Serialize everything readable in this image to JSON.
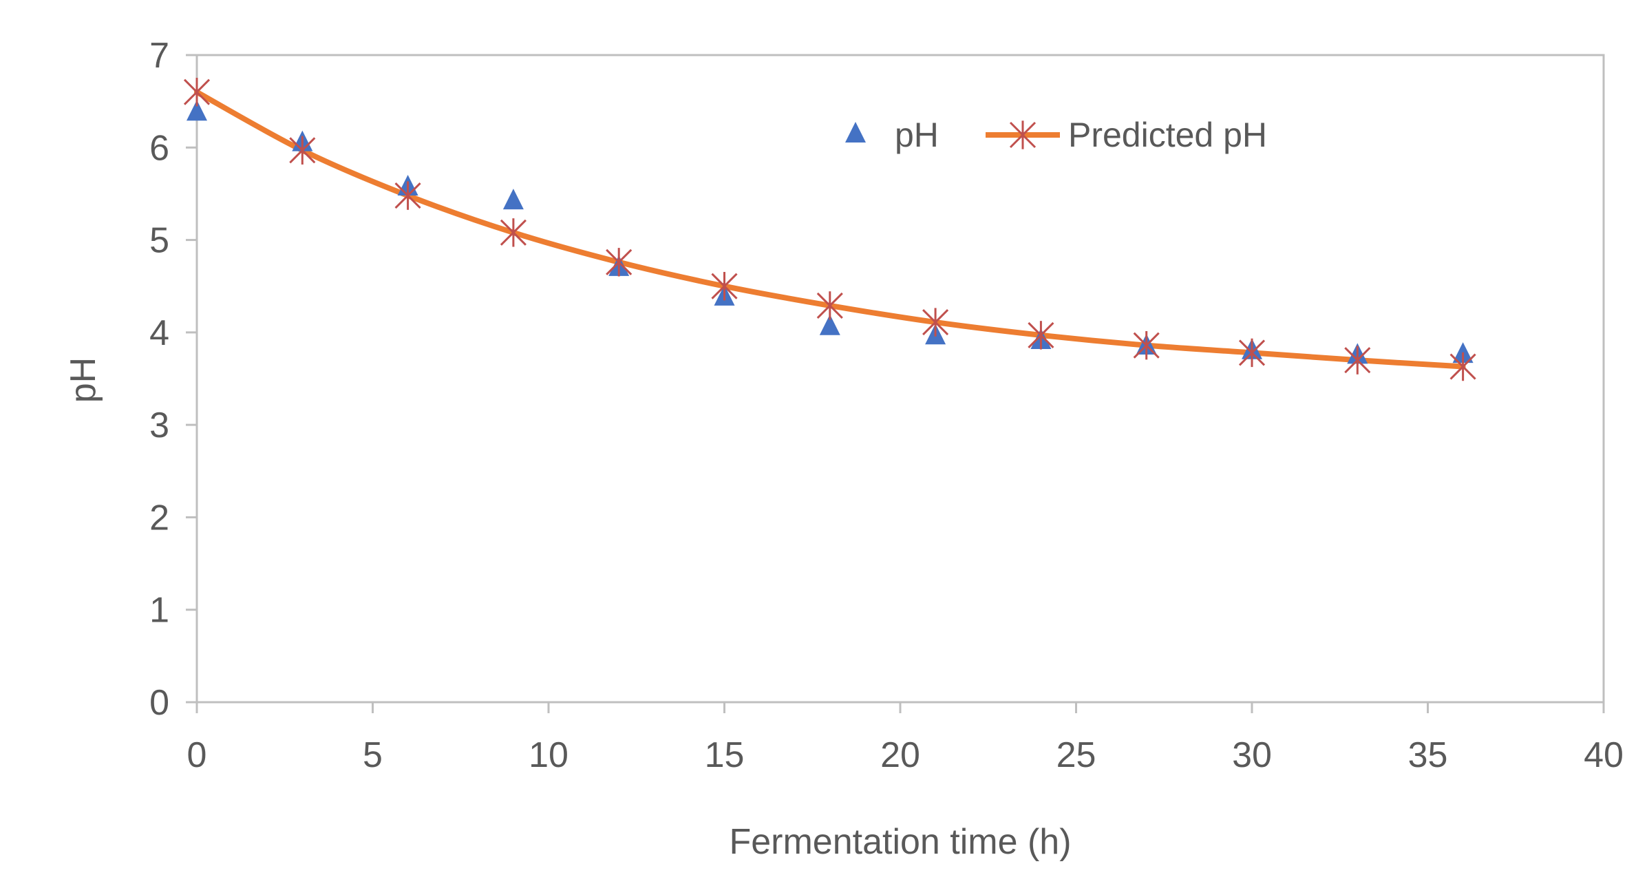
{
  "chart_data": {
    "type": "scatter",
    "title": "",
    "xlabel": "Fermentation time (h)",
    "ylabel": "pH",
    "xlim": [
      0,
      40
    ],
    "ylim": [
      0,
      7
    ],
    "xticks": [
      "0",
      "5",
      "10",
      "15",
      "20",
      "25",
      "30",
      "35",
      "40"
    ],
    "yticks": [
      "0",
      "1",
      "2",
      "3",
      "4",
      "5",
      "6",
      "7"
    ],
    "grid": false,
    "legend_position": "top-right",
    "series": [
      {
        "name": "pH",
        "kind": "markers",
        "marker": "triangle",
        "color": "#4472C4",
        "x": [
          0,
          3,
          6,
          9,
          12,
          15,
          18,
          21,
          24,
          27,
          30,
          33,
          36
        ],
        "y": [
          6.38,
          6.05,
          5.57,
          5.42,
          4.7,
          4.38,
          4.06,
          3.96,
          3.91,
          3.85,
          3.8,
          3.75,
          3.76
        ]
      },
      {
        "name": "Predicted pH",
        "kind": "line",
        "marker": "star",
        "color": "#ED7D31",
        "marker_color": "#C0504D",
        "x": [
          0,
          3,
          6,
          9,
          12,
          15,
          18,
          21,
          24,
          27,
          30,
          33,
          36
        ],
        "y": [
          6.6,
          5.97,
          5.48,
          5.08,
          4.76,
          4.5,
          4.29,
          4.11,
          3.97,
          3.86,
          3.78,
          3.7,
          3.63
        ]
      }
    ]
  }
}
